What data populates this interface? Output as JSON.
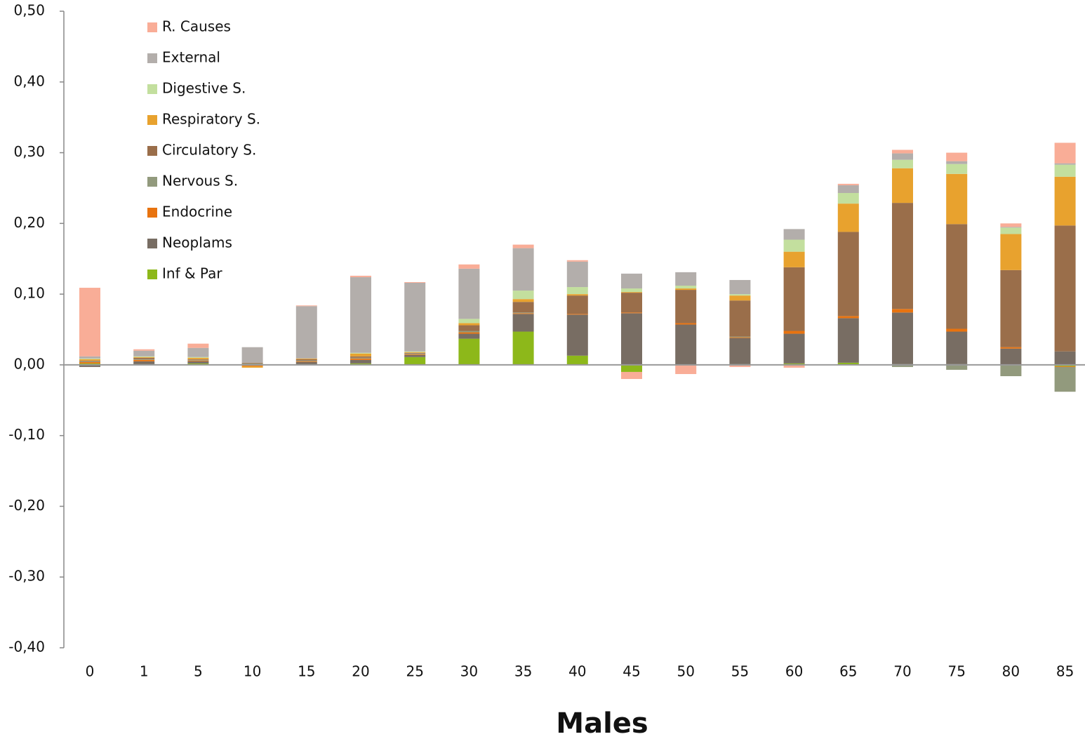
{
  "chart_data": {
    "type": "stacked_bar",
    "title": "Males",
    "categories": [
      "0",
      "1",
      "5",
      "10",
      "15",
      "20",
      "25",
      "30",
      "35",
      "40",
      "45",
      "50",
      "55",
      "60",
      "65",
      "70",
      "75",
      "80",
      "85"
    ],
    "ylim": [
      -0.4,
      0.5
    ],
    "yticks": [
      {
        "value": -0.4,
        "label": "-0,40"
      },
      {
        "value": -0.3,
        "label": "-0,30"
      },
      {
        "value": -0.2,
        "label": "-0,20"
      },
      {
        "value": -0.1,
        "label": "-0,10"
      },
      {
        "value": 0,
        "label": "0,00"
      },
      {
        "value": 0.1,
        "label": "0,10"
      },
      {
        "value": 0.2,
        "label": "0,20"
      },
      {
        "value": 0.3,
        "label": "0,30"
      },
      {
        "value": 0.4,
        "label": "0,40"
      },
      {
        "value": 0.5,
        "label": "0,50"
      }
    ],
    "legend": "upper left",
    "series": [
      {
        "name": "Inf & Par",
        "color": "#8db81a",
        "values": [
          0.002,
          0.001,
          0.002,
          0,
          0.001,
          0.002,
          0.011,
          0.037,
          0.047,
          0.013,
          -0.01,
          0,
          0.001,
          0.002,
          0.003,
          0.001,
          0.001,
          0,
          -0.002
        ]
      },
      {
        "name": "Neoplams",
        "color": "#786d63",
        "values": [
          -0.003,
          0.004,
          0.003,
          0.001,
          0.003,
          0.005,
          0.003,
          0.007,
          0.025,
          0.058,
          0.073,
          0.057,
          0.037,
          0.042,
          0.063,
          0.073,
          0.046,
          0.023,
          0.019
        ]
      },
      {
        "name": "Endocrine",
        "color": "#e8730f",
        "values": [
          0.002,
          0.002,
          0.001,
          -0.002,
          0.001,
          0.002,
          0.001,
          0.002,
          0.001,
          0.001,
          0.001,
          0.002,
          0.001,
          0.004,
          0.003,
          0.005,
          0.004,
          0.002,
          -0.001
        ]
      },
      {
        "name": "Nervous S.",
        "color": "#929a7d",
        "values": [
          0.001,
          0.001,
          0.001,
          0.001,
          0.001,
          0.001,
          0.001,
          0.002,
          0.001,
          0,
          0,
          0,
          0.001,
          0,
          0,
          -0.003,
          -0.007,
          -0.016,
          -0.035
        ]
      },
      {
        "name": "Circulatory S.",
        "color": "#9a6e4a",
        "values": [
          0.001,
          0.002,
          0.001,
          0.001,
          0.002,
          0.002,
          0.001,
          0.008,
          0.015,
          0.026,
          0.028,
          0.047,
          0.051,
          0.09,
          0.119,
          0.15,
          0.148,
          0.109,
          0.178
        ]
      },
      {
        "name": "Respiratory S.",
        "color": "#e8a22e",
        "values": [
          0.002,
          0.001,
          0.002,
          -0.002,
          0.001,
          0.004,
          0.001,
          0.003,
          0.004,
          0.002,
          0.001,
          0.002,
          0.007,
          0.022,
          0.04,
          0.049,
          0.071,
          0.051,
          0.069
        ]
      },
      {
        "name": "Digestive S.",
        "color": "#c3df9e",
        "values": [
          0.001,
          0.001,
          0.001,
          0,
          0,
          0.001,
          0.001,
          0.006,
          0.012,
          0.01,
          0.005,
          0.004,
          0.002,
          0.017,
          0.015,
          0.012,
          0.014,
          0.009,
          0.017
        ]
      },
      {
        "name": "External",
        "color": "#b3aeab",
        "values": [
          0.003,
          0.008,
          0.013,
          0.022,
          0.074,
          0.107,
          0.097,
          0.071,
          0.06,
          0.036,
          0.021,
          0.019,
          0.02,
          0.015,
          0.011,
          0.009,
          0.004,
          0.001,
          0.002
        ]
      },
      {
        "name": "R. Causes",
        "color": "#f9ad97",
        "values": [
          0.097,
          0.002,
          0.006,
          0,
          0.001,
          0.002,
          0.001,
          0.006,
          0.005,
          0.002,
          -0.01,
          -0.013,
          -0.003,
          -0.004,
          0.002,
          0.005,
          0.012,
          0.005,
          0.029
        ]
      }
    ]
  }
}
